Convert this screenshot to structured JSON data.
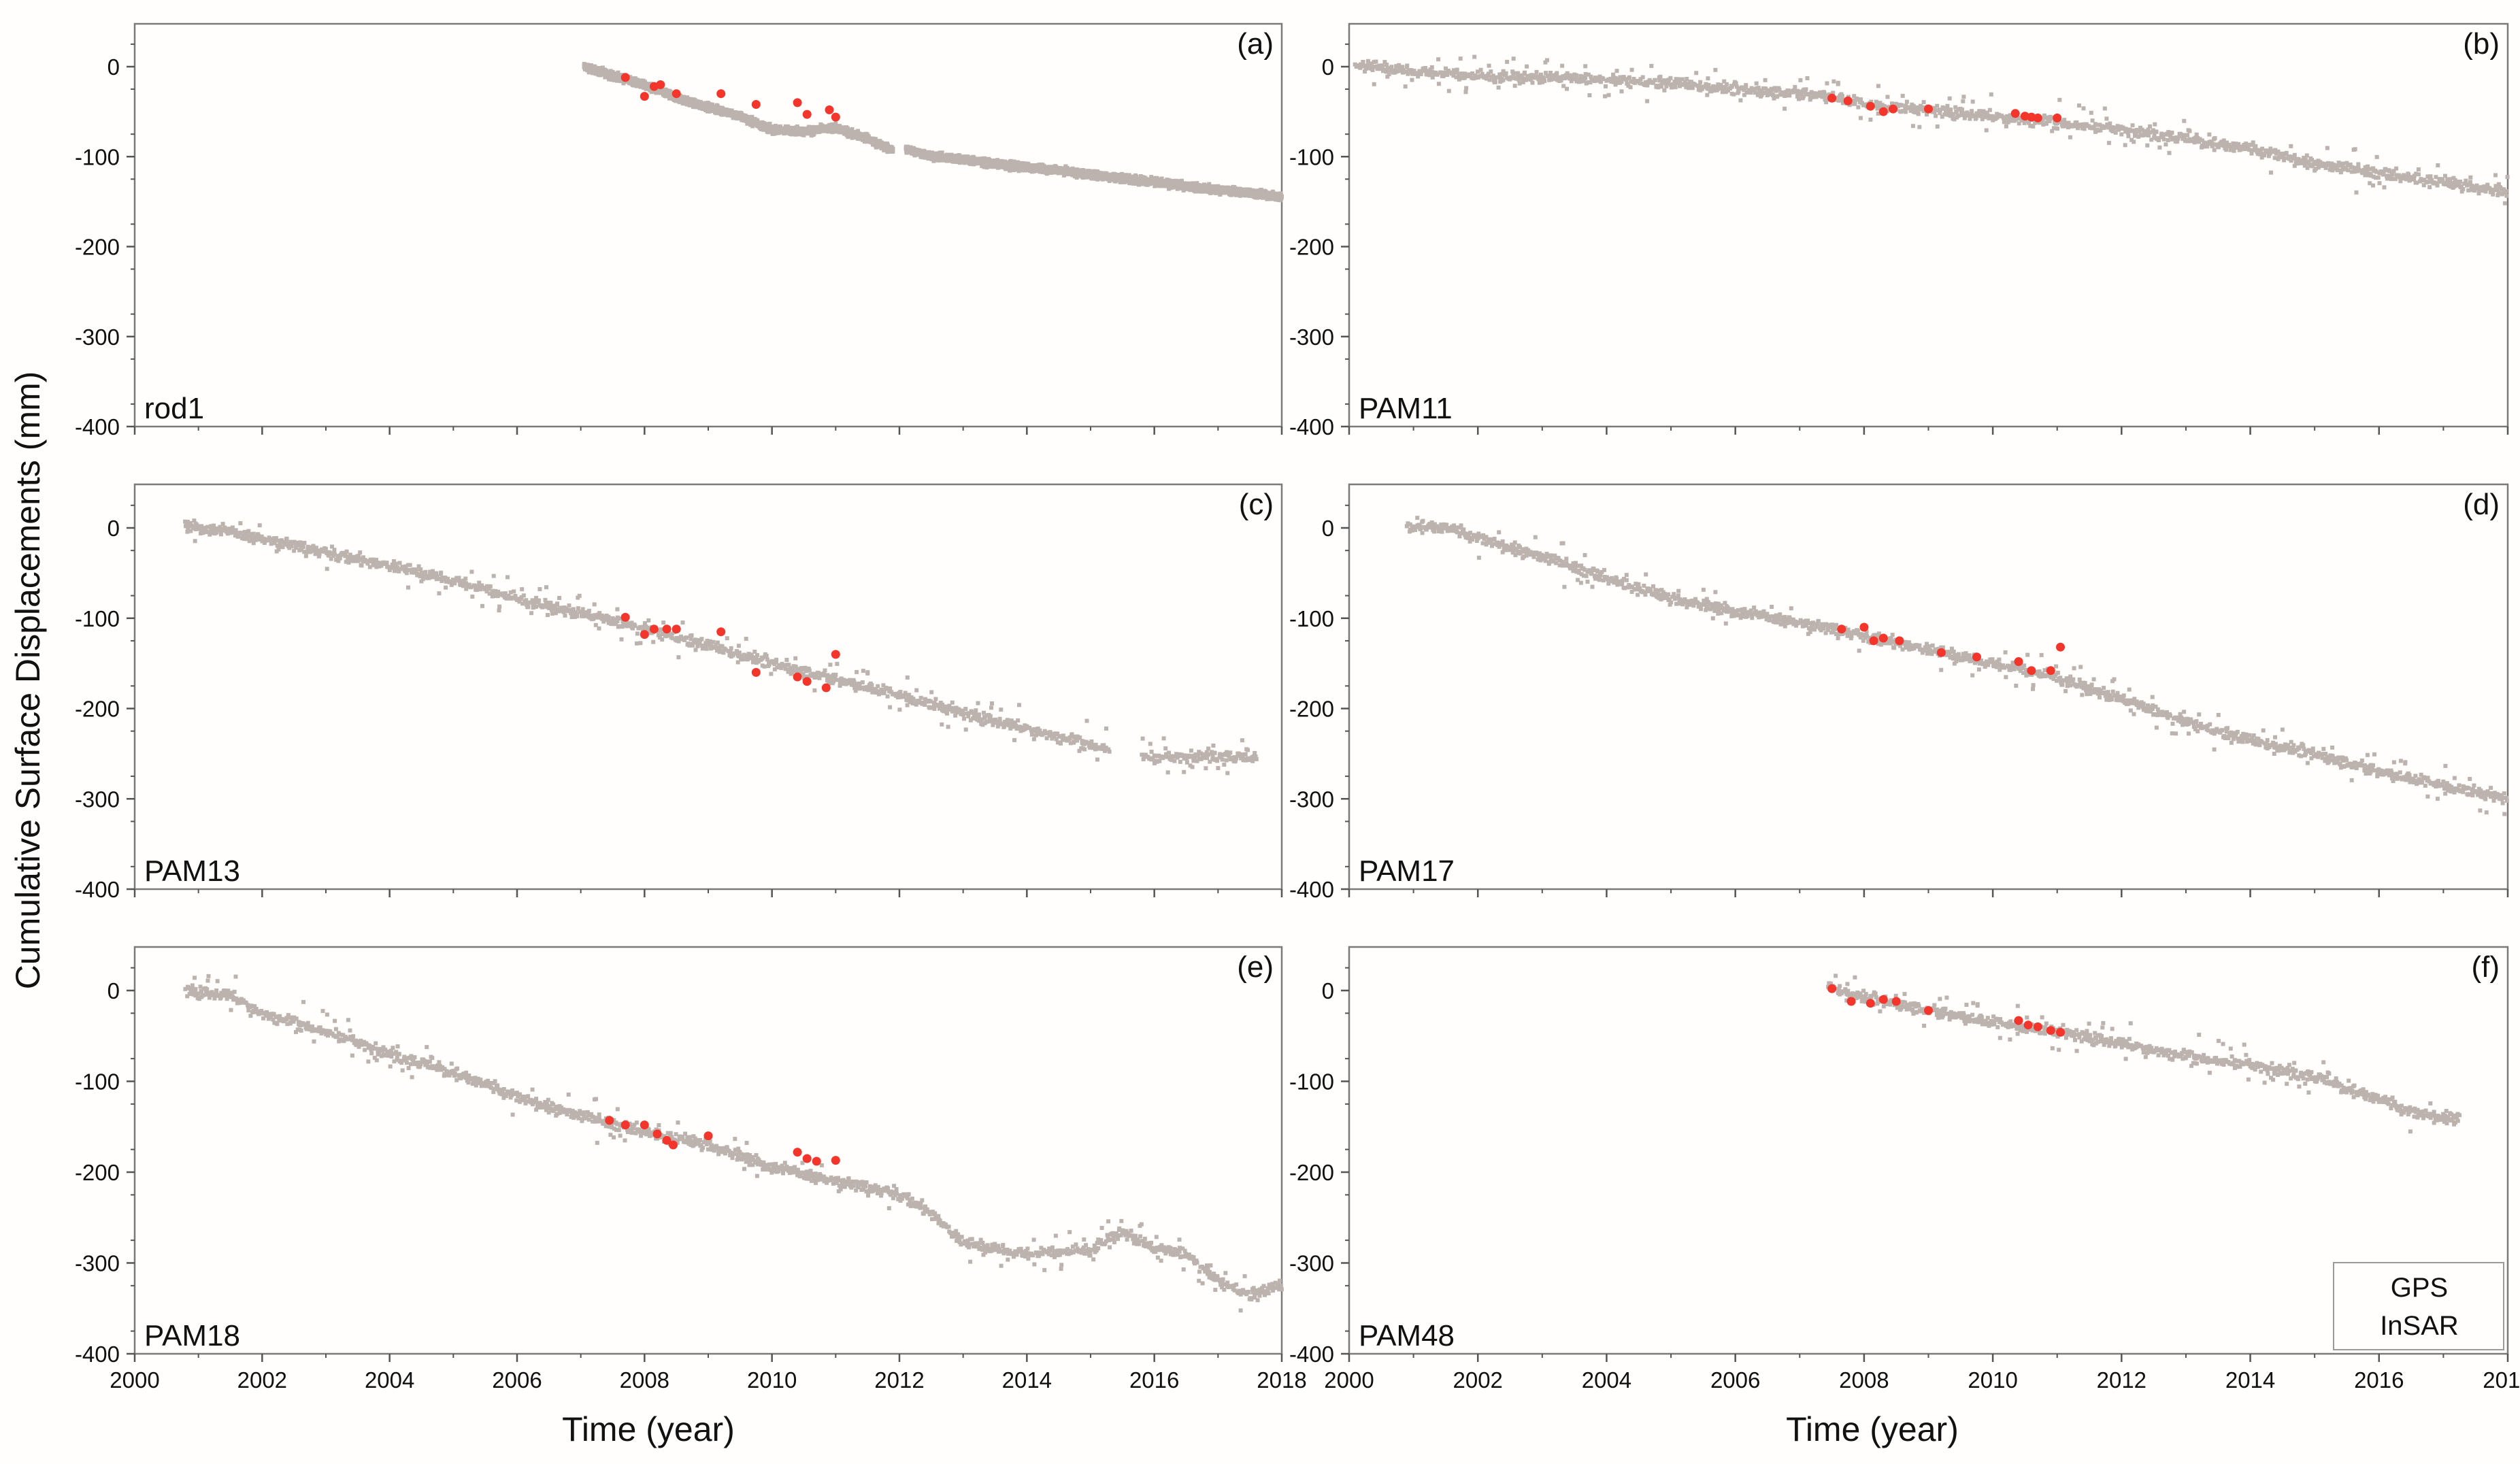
{
  "chart_data": {
    "type": "scatter",
    "ylabel": "Cumulative Surface Displacements (mm)",
    "xlabel": "Time (year)",
    "xlim": [
      2000,
      2018
    ],
    "ylim": [
      -400,
      50
    ],
    "x_ticks": [
      2000,
      2002,
      2004,
      2006,
      2008,
      2010,
      2012,
      2014,
      2016,
      2018
    ],
    "y_ticks": [
      0,
      -100,
      -200,
      -300,
      -400
    ],
    "legend": [
      {
        "name": "GPS",
        "color": "#bdb3ae"
      },
      {
        "name": "InSAR",
        "color": "#f4352b"
      }
    ],
    "panels": [
      {
        "tag": "(a)",
        "site": "rod1",
        "gps_x": [
          2007.05,
          2007.5,
          2008.0,
          2008.5,
          2009.0,
          2009.5,
          2010.0,
          2010.5,
          2011.0,
          2011.5,
          2011.85,
          2012.15,
          2012.5,
          2013.0,
          2013.5,
          2014.0,
          2014.5,
          2015.0,
          2015.5,
          2016.0,
          2016.5,
          2017.0,
          2017.5,
          2018.0
        ],
        "gps_y": [
          0,
          -10,
          -20,
          -35,
          -45,
          -55,
          -70,
          -72,
          -68,
          -80,
          -92,
          -92,
          -100,
          -103,
          -108,
          -112,
          -115,
          -120,
          -124,
          -128,
          -133,
          -137,
          -140,
          -145
        ],
        "gps_gaps": [
          [
            11.9,
            12.1
          ]
        ],
        "insar_x": [
          2007.7,
          2008.0,
          2008.15,
          2008.25,
          2008.5,
          2009.2,
          2009.75,
          2010.4,
          2010.55,
          2010.9,
          2011.0
        ],
        "insar_y": [
          -12,
          -33,
          -22,
          -20,
          -30,
          -30,
          -42,
          -40,
          -53,
          -48,
          -56
        ]
      },
      {
        "tag": "(b)",
        "site": "PAM11",
        "gps_x": [
          2000.1,
          2001.0,
          2002.0,
          2003.0,
          2004.0,
          2005.0,
          2006.0,
          2007.0,
          2007.5,
          2008.0,
          2009.0,
          2010.0,
          2011.0,
          2012.0,
          2013.0,
          2014.0,
          2015.0,
          2016.0,
          2017.0,
          2018.0
        ],
        "gps_y": [
          2,
          -5,
          -10,
          -12,
          -15,
          -18,
          -25,
          -30,
          -33,
          -42,
          -48,
          -55,
          -62,
          -70,
          -80,
          -92,
          -108,
          -118,
          -128,
          -140
        ],
        "gps_gaps": [],
        "insar_x": [
          2007.5,
          2007.75,
          2008.1,
          2008.3,
          2008.45,
          2009.0,
          2010.35,
          2010.5,
          2010.6,
          2010.7,
          2011.0
        ],
        "insar_y": [
          -35,
          -38,
          -44,
          -50,
          -47,
          -47,
          -52,
          -55,
          -56,
          -57,
          -57
        ]
      },
      {
        "tag": "(c)",
        "site": "PAM13",
        "gps_x": [
          2000.8,
          2001.5,
          2002.0,
          2003.0,
          2004.0,
          2005.0,
          2006.0,
          2007.0,
          2008.0,
          2009.0,
          2010.0,
          2011.0,
          2012.0,
          2013.0,
          2014.0,
          2015.0,
          2016.0,
          2017.0,
          2017.6
        ],
        "gps_y": [
          2,
          -5,
          -12,
          -28,
          -42,
          -58,
          -78,
          -95,
          -112,
          -130,
          -150,
          -168,
          -185,
          -205,
          -222,
          -240,
          -255,
          -252,
          -256
        ],
        "gps_gaps": [
          [
            15.3,
            15.8
          ]
        ],
        "insar_x": [
          2007.7,
          2008.0,
          2008.15,
          2008.35,
          2008.5,
          2009.2,
          2009.75,
          2010.4,
          2010.55,
          2010.85,
          2011.0
        ],
        "insar_y": [
          -99,
          -118,
          -112,
          -112,
          -112,
          -115,
          -160,
          -165,
          -170,
          -177,
          -140
        ]
      },
      {
        "tag": "(d)",
        "site": "PAM17",
        "gps_x": [
          2000.9,
          2001.5,
          2002.0,
          2003.0,
          2004.0,
          2005.0,
          2006.0,
          2007.0,
          2008.0,
          2009.0,
          2010.0,
          2011.0,
          2012.0,
          2013.0,
          2014.0,
          2015.0,
          2016.0,
          2017.0,
          2018.0
        ],
        "gps_y": [
          3,
          0,
          -12,
          -32,
          -55,
          -78,
          -93,
          -105,
          -120,
          -135,
          -150,
          -165,
          -190,
          -215,
          -235,
          -250,
          -270,
          -285,
          -300
        ],
        "gps_gaps": [],
        "insar_x": [
          2007.65,
          2008.0,
          2008.15,
          2008.3,
          2008.55,
          2009.2,
          2009.75,
          2010.4,
          2010.6,
          2010.9,
          2011.05
        ],
        "insar_y": [
          -112,
          -110,
          -125,
          -122,
          -125,
          -138,
          -143,
          -148,
          -158,
          -158,
          -132
        ]
      },
      {
        "tag": "(e)",
        "site": "PAM18",
        "gps_x": [
          2000.8,
          2001.5,
          2002.0,
          2003.0,
          2004.0,
          2005.0,
          2006.0,
          2007.0,
          2008.0,
          2009.0,
          2010.0,
          2011.0,
          2012.0,
          2012.5,
          2013.0,
          2014.0,
          2015.0,
          2015.5,
          2016.0,
          2016.5,
          2017.0,
          2017.5,
          2018.0
        ],
        "gps_y": [
          0,
          -5,
          -25,
          -45,
          -70,
          -90,
          -118,
          -138,
          -155,
          -170,
          -195,
          -210,
          -225,
          -245,
          -278,
          -290,
          -285,
          -265,
          -285,
          -290,
          -320,
          -335,
          -325
        ],
        "gps_gaps": [],
        "insar_x": [
          2007.45,
          2007.7,
          2008.0,
          2008.2,
          2008.35,
          2008.45,
          2009.0,
          2010.4,
          2010.55,
          2010.7,
          2011.0
        ],
        "insar_y": [
          -143,
          -148,
          -148,
          -158,
          -165,
          -170,
          -160,
          -178,
          -185,
          -188,
          -187
        ]
      },
      {
        "tag": "(f)",
        "site": "PAM48",
        "gps_x": [
          2007.45,
          2008.0,
          2008.5,
          2009.0,
          2010.0,
          2011.0,
          2012.0,
          2013.0,
          2014.0,
          2015.0,
          2016.0,
          2016.5,
          2017.0,
          2017.25
        ],
        "gps_y": [
          5,
          -8,
          -14,
          -22,
          -35,
          -45,
          -58,
          -72,
          -82,
          -95,
          -120,
          -135,
          -140,
          -140
        ],
        "gps_gaps": [],
        "insar_x": [
          2007.5,
          2007.8,
          2008.1,
          2008.3,
          2008.5,
          2009.0,
          2010.4,
          2010.55,
          2010.7,
          2010.9,
          2011.05
        ],
        "insar_y": [
          2,
          -12,
          -14,
          -10,
          -12,
          -22,
          -33,
          -38,
          -40,
          -44,
          -46
        ]
      }
    ]
  }
}
